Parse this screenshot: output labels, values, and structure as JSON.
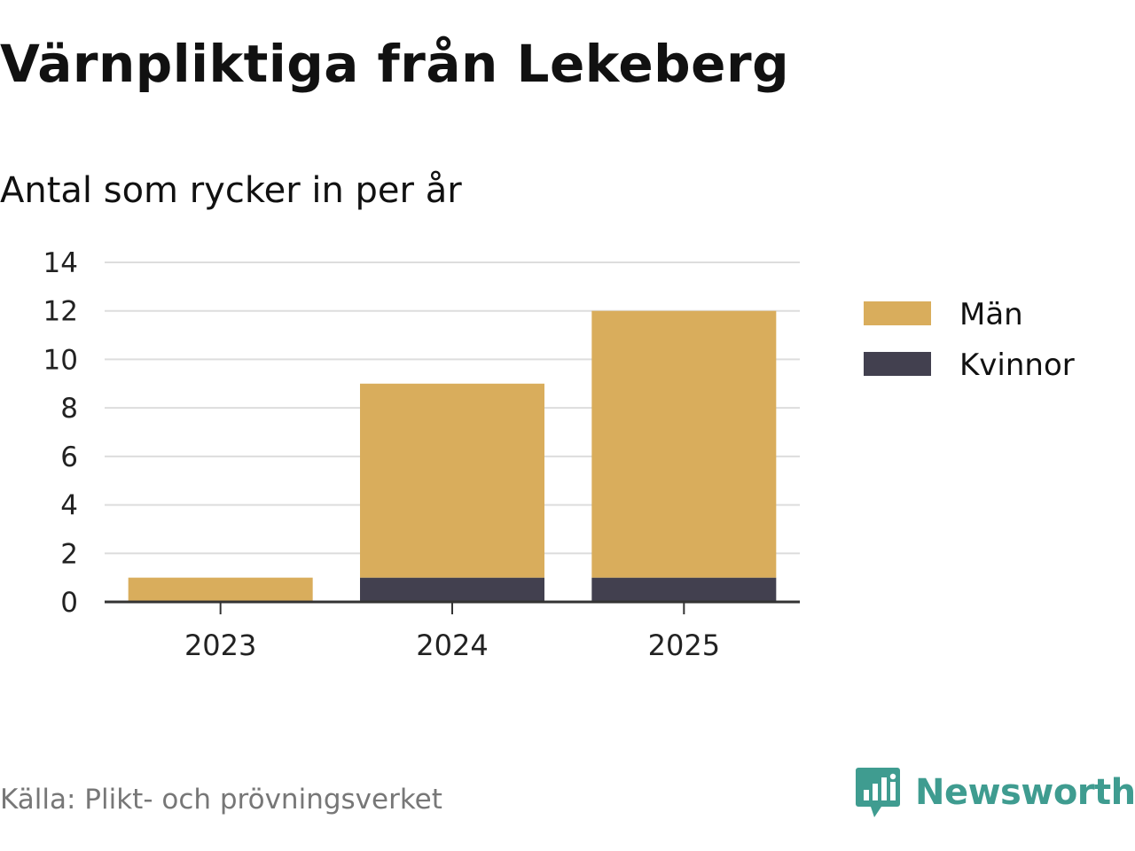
{
  "title": "Värnpliktiga från Lekeberg",
  "subtitle": "Antal som rycker in per år",
  "source": "Källa: Plikt- och prövningsverket",
  "brand": {
    "name": "Newsworthy",
    "icon": "newsworthy-logo-icon",
    "color": "#3f9c90"
  },
  "chart_data": {
    "type": "bar",
    "stacked": true,
    "categories": [
      "2023",
      "2024",
      "2025"
    ],
    "series": [
      {
        "name": "Kvinnor",
        "values": [
          0,
          1,
          1
        ],
        "color": "#42404f"
      },
      {
        "name": "Män",
        "values": [
          1,
          8,
          11
        ],
        "color": "#d9ad5c"
      }
    ],
    "legend_order": [
      "Män",
      "Kvinnor"
    ],
    "legend_position": "right",
    "ylim": [
      0,
      14
    ],
    "yticks": [
      0,
      2,
      4,
      6,
      8,
      10,
      12,
      14
    ],
    "grid": true,
    "xlabel": "",
    "ylabel": ""
  }
}
